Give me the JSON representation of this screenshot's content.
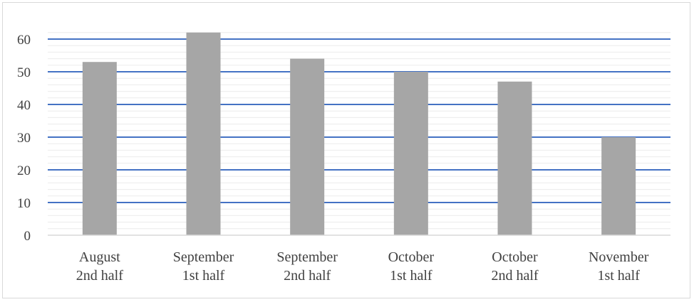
{
  "chart_data": {
    "type": "bar",
    "title": "",
    "xlabel": "",
    "ylabel": "",
    "categories": [
      [
        "August",
        "2nd half"
      ],
      [
        "September",
        "1st half"
      ],
      [
        "September",
        "2nd half"
      ],
      [
        "October",
        "1st half"
      ],
      [
        "October",
        "2nd half"
      ],
      [
        "November",
        "1st half"
      ]
    ],
    "values": [
      53,
      62,
      54,
      50,
      47,
      30
    ],
    "ylim": [
      0,
      60
    ],
    "yticks": [
      0,
      10,
      20,
      30,
      40,
      50,
      60
    ],
    "grid": true,
    "legend": "none",
    "colors": {
      "bar": "#a6a6a6",
      "major_grid": "#4472c4",
      "minor_grid": "#ececec",
      "axis": "#d9d9d9",
      "text": "#404040"
    }
  }
}
